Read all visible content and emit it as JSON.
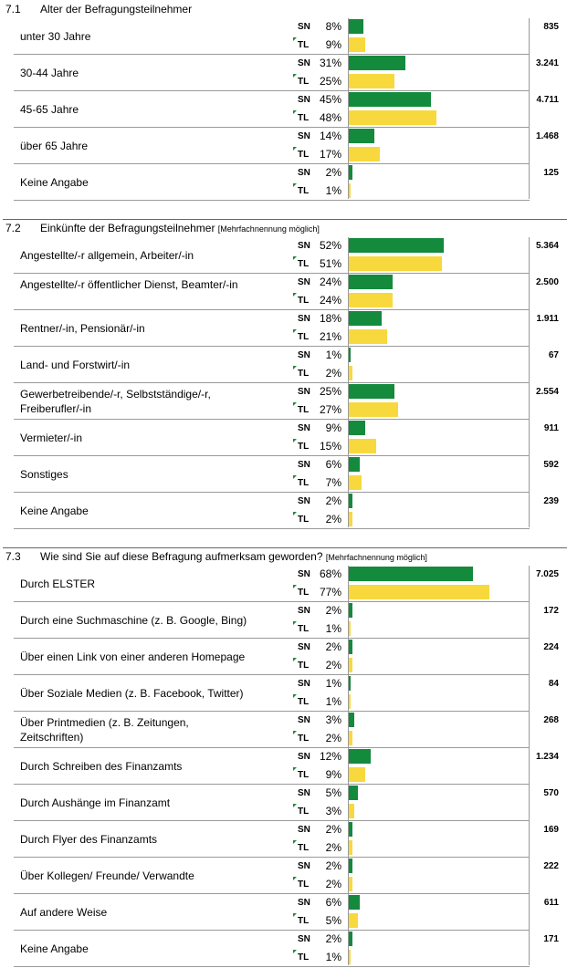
{
  "labels": {
    "sn": "SN",
    "tl": "TL"
  },
  "colors": {
    "sn": "#138a3c",
    "tl": "#f7d93e"
  },
  "chart_data": [
    {
      "type": "bar",
      "number": "7.1",
      "title": "Alter der Befragungsteilnehmer",
      "note": "",
      "rows": [
        {
          "label": "unter 30 Jahre",
          "sn": 8,
          "tl": 9,
          "sn_text": "8%",
          "tl_text": "9%",
          "count": "835"
        },
        {
          "label": "30-44 Jahre",
          "sn": 31,
          "tl": 25,
          "sn_text": "31%",
          "tl_text": "25%",
          "count": "3.241"
        },
        {
          "label": "45-65 Jahre",
          "sn": 45,
          "tl": 48,
          "sn_text": "45%",
          "tl_text": "48%",
          "count": "4.711"
        },
        {
          "label": "über 65 Jahre",
          "sn": 14,
          "tl": 17,
          "sn_text": "14%",
          "tl_text": "17%",
          "count": "1.468"
        },
        {
          "label": "Keine Angabe",
          "sn": 2,
          "tl": 1,
          "sn_text": "2%",
          "tl_text": "1%",
          "count": "125"
        }
      ]
    },
    {
      "type": "bar",
      "number": "7.2",
      "title": "Einkünfte der Befragungsteilnehmer",
      "note": "[Mehrfachnennung möglich]",
      "rows": [
        {
          "label": "Angestellte/-r allgemein, Arbeiter/-in",
          "sn": 52,
          "tl": 51,
          "sn_text": "52%",
          "tl_text": "51%",
          "count": "5.364"
        },
        {
          "label": "Angestellte/-r öffentlicher Dienst, Beamter/-in",
          "sn": 24,
          "tl": 24,
          "sn_text": "24%",
          "tl_text": "24%",
          "count": "2.500"
        },
        {
          "label": "Rentner/-in, Pensionär/-in",
          "sn": 18,
          "tl": 21,
          "sn_text": "18%",
          "tl_text": "21%",
          "count": "1.911"
        },
        {
          "label": "Land- und Forstwirt/-in",
          "sn": 1,
          "tl": 2,
          "sn_text": "1%",
          "tl_text": "2%",
          "count": "67"
        },
        {
          "label": "Gewerbetreibende/-r, Selbstständige/-r, Freiberufler/-in",
          "sn": 25,
          "tl": 27,
          "sn_text": "25%",
          "tl_text": "27%",
          "count": "2.554"
        },
        {
          "label": "Vermieter/-in",
          "sn": 9,
          "tl": 15,
          "sn_text": "9%",
          "tl_text": "15%",
          "count": "911"
        },
        {
          "label": "Sonstiges",
          "sn": 6,
          "tl": 7,
          "sn_text": "6%",
          "tl_text": "7%",
          "count": "592"
        },
        {
          "label": "Keine Angabe",
          "sn": 2,
          "tl": 2,
          "sn_text": "2%",
          "tl_text": "2%",
          "count": "239"
        }
      ]
    },
    {
      "type": "bar",
      "number": "7.3",
      "title": "Wie sind Sie auf diese Befragung aufmerksam geworden?",
      "note": "[Mehrfachnennung möglich]",
      "rows": [
        {
          "label": "Durch ELSTER",
          "sn": 68,
          "tl": 77,
          "sn_text": "68%",
          "tl_text": "77%",
          "count": "7.025"
        },
        {
          "label": "Durch eine Suchmaschine (z. B. Google, Bing)",
          "sn": 2,
          "tl": 1,
          "sn_text": "2%",
          "tl_text": "1%",
          "count": "172"
        },
        {
          "label": "Über einen Link von einer anderen Homepage",
          "sn": 2,
          "tl": 2,
          "sn_text": "2%",
          "tl_text": "2%",
          "count": "224"
        },
        {
          "label": "Über Soziale Medien (z. B. Facebook, Twitter)",
          "sn": 1,
          "tl": 1,
          "sn_text": "1%",
          "tl_text": "1%",
          "count": "84"
        },
        {
          "label": "Über Printmedien (z. B. Zeitungen, Zeitschriften)",
          "sn": 3,
          "tl": 2,
          "sn_text": "3%",
          "tl_text": "2%",
          "count": "268"
        },
        {
          "label": "Durch Schreiben des Finanzamts",
          "sn": 12,
          "tl": 9,
          "sn_text": "12%",
          "tl_text": "9%",
          "count": "1.234"
        },
        {
          "label": "Durch Aushänge im Finanzamt",
          "sn": 5,
          "tl": 3,
          "sn_text": "5%",
          "tl_text": "3%",
          "count": "570"
        },
        {
          "label": "Durch Flyer des Finanzamts",
          "sn": 2,
          "tl": 2,
          "sn_text": "2%",
          "tl_text": "2%",
          "count": "169"
        },
        {
          "label": "Über Kollegen/ Freunde/ Verwandte",
          "sn": 2,
          "tl": 2,
          "sn_text": "2%",
          "tl_text": "2%",
          "count": "222"
        },
        {
          "label": "Auf andere Weise",
          "sn": 6,
          "tl": 5,
          "sn_text": "6%",
          "tl_text": "5%",
          "count": "611"
        },
        {
          "label": "Keine Angabe",
          "sn": 2,
          "tl": 1,
          "sn_text": "2%",
          "tl_text": "1%",
          "count": "171"
        }
      ]
    }
  ]
}
